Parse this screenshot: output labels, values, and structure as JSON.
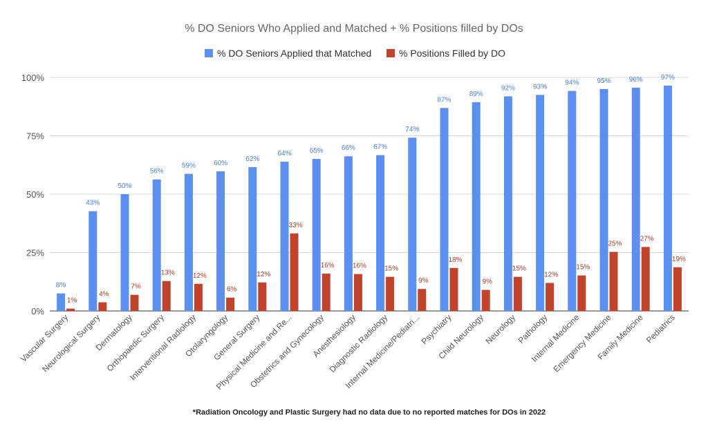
{
  "chart_data": {
    "type": "bar",
    "title": "% DO Seniors Who Applied and Matched + % Positions filled by DOs",
    "xlabel": "",
    "ylabel": "",
    "ylim": [
      0,
      100
    ],
    "y_ticks": [
      "0%",
      "25%",
      "50%",
      "75%",
      "100%"
    ],
    "y_tick_values": [
      0,
      25,
      50,
      75,
      100
    ],
    "grid": true,
    "legend_position": "top-center",
    "categories": [
      "Vascular Surgery",
      "Neurological Surgery",
      "Dermatology",
      "Orthopaedic Surgery",
      "Interventional Radiology",
      "Otolaryngology",
      "General Surgery",
      "Physical Medicine and Re...",
      "Obstetrics and Gynecology",
      "Anesthesiology",
      "Diagnostic Radiology",
      "Internal Medicine/Pediatri...",
      "Psychiatry",
      "Child Neurology",
      "Neurology",
      "Pathology",
      "Internal Medicine",
      "Emergency Medicine",
      "Family Medicine",
      "Pediatrics"
    ],
    "series": [
      {
        "name": "% DO Seniors Applied that Matched",
        "color": "#5b8ff0",
        "label_color": "#4a7fe0",
        "values": [
          7.5,
          42.7,
          50,
          56.3,
          58.7,
          59.8,
          61.6,
          63.9,
          65.1,
          66.2,
          66.7,
          74.2,
          86.9,
          89.4,
          91.9,
          92.5,
          94.2,
          95.0,
          95.6,
          96.5
        ],
        "labels": [
          "8%",
          "43%",
          "50%",
          "56%",
          "59%",
          "60%",
          "62%",
          "64%",
          "65%",
          "66%",
          "67%",
          "74%",
          "87%",
          "89%",
          "92%",
          "93%",
          "94%",
          "95%",
          "96%",
          "97%"
        ]
      },
      {
        "name": "% Positions Filled by DO",
        "color": "#c2432c",
        "label_color": "#b03a25",
        "values": [
          1,
          3.7,
          6.9,
          12.8,
          11.6,
          5.7,
          12.2,
          33.2,
          16,
          15.8,
          14.6,
          9.4,
          18.4,
          9,
          14.6,
          12,
          15.2,
          25.3,
          27.4,
          18.7
        ],
        "labels": [
          "1%",
          "4%",
          "7%",
          "13%",
          "12%",
          "6%",
          "12%",
          "33%",
          "16%",
          "16%",
          "15%",
          "9%",
          "18%",
          "9%",
          "15%",
          "12%",
          "15%",
          "25%",
          "27%",
          "19%"
        ]
      }
    ],
    "footnote": "*Radiation Oncology and Plastic Surgery had no data due to no reported matches for DOs in 2022"
  }
}
